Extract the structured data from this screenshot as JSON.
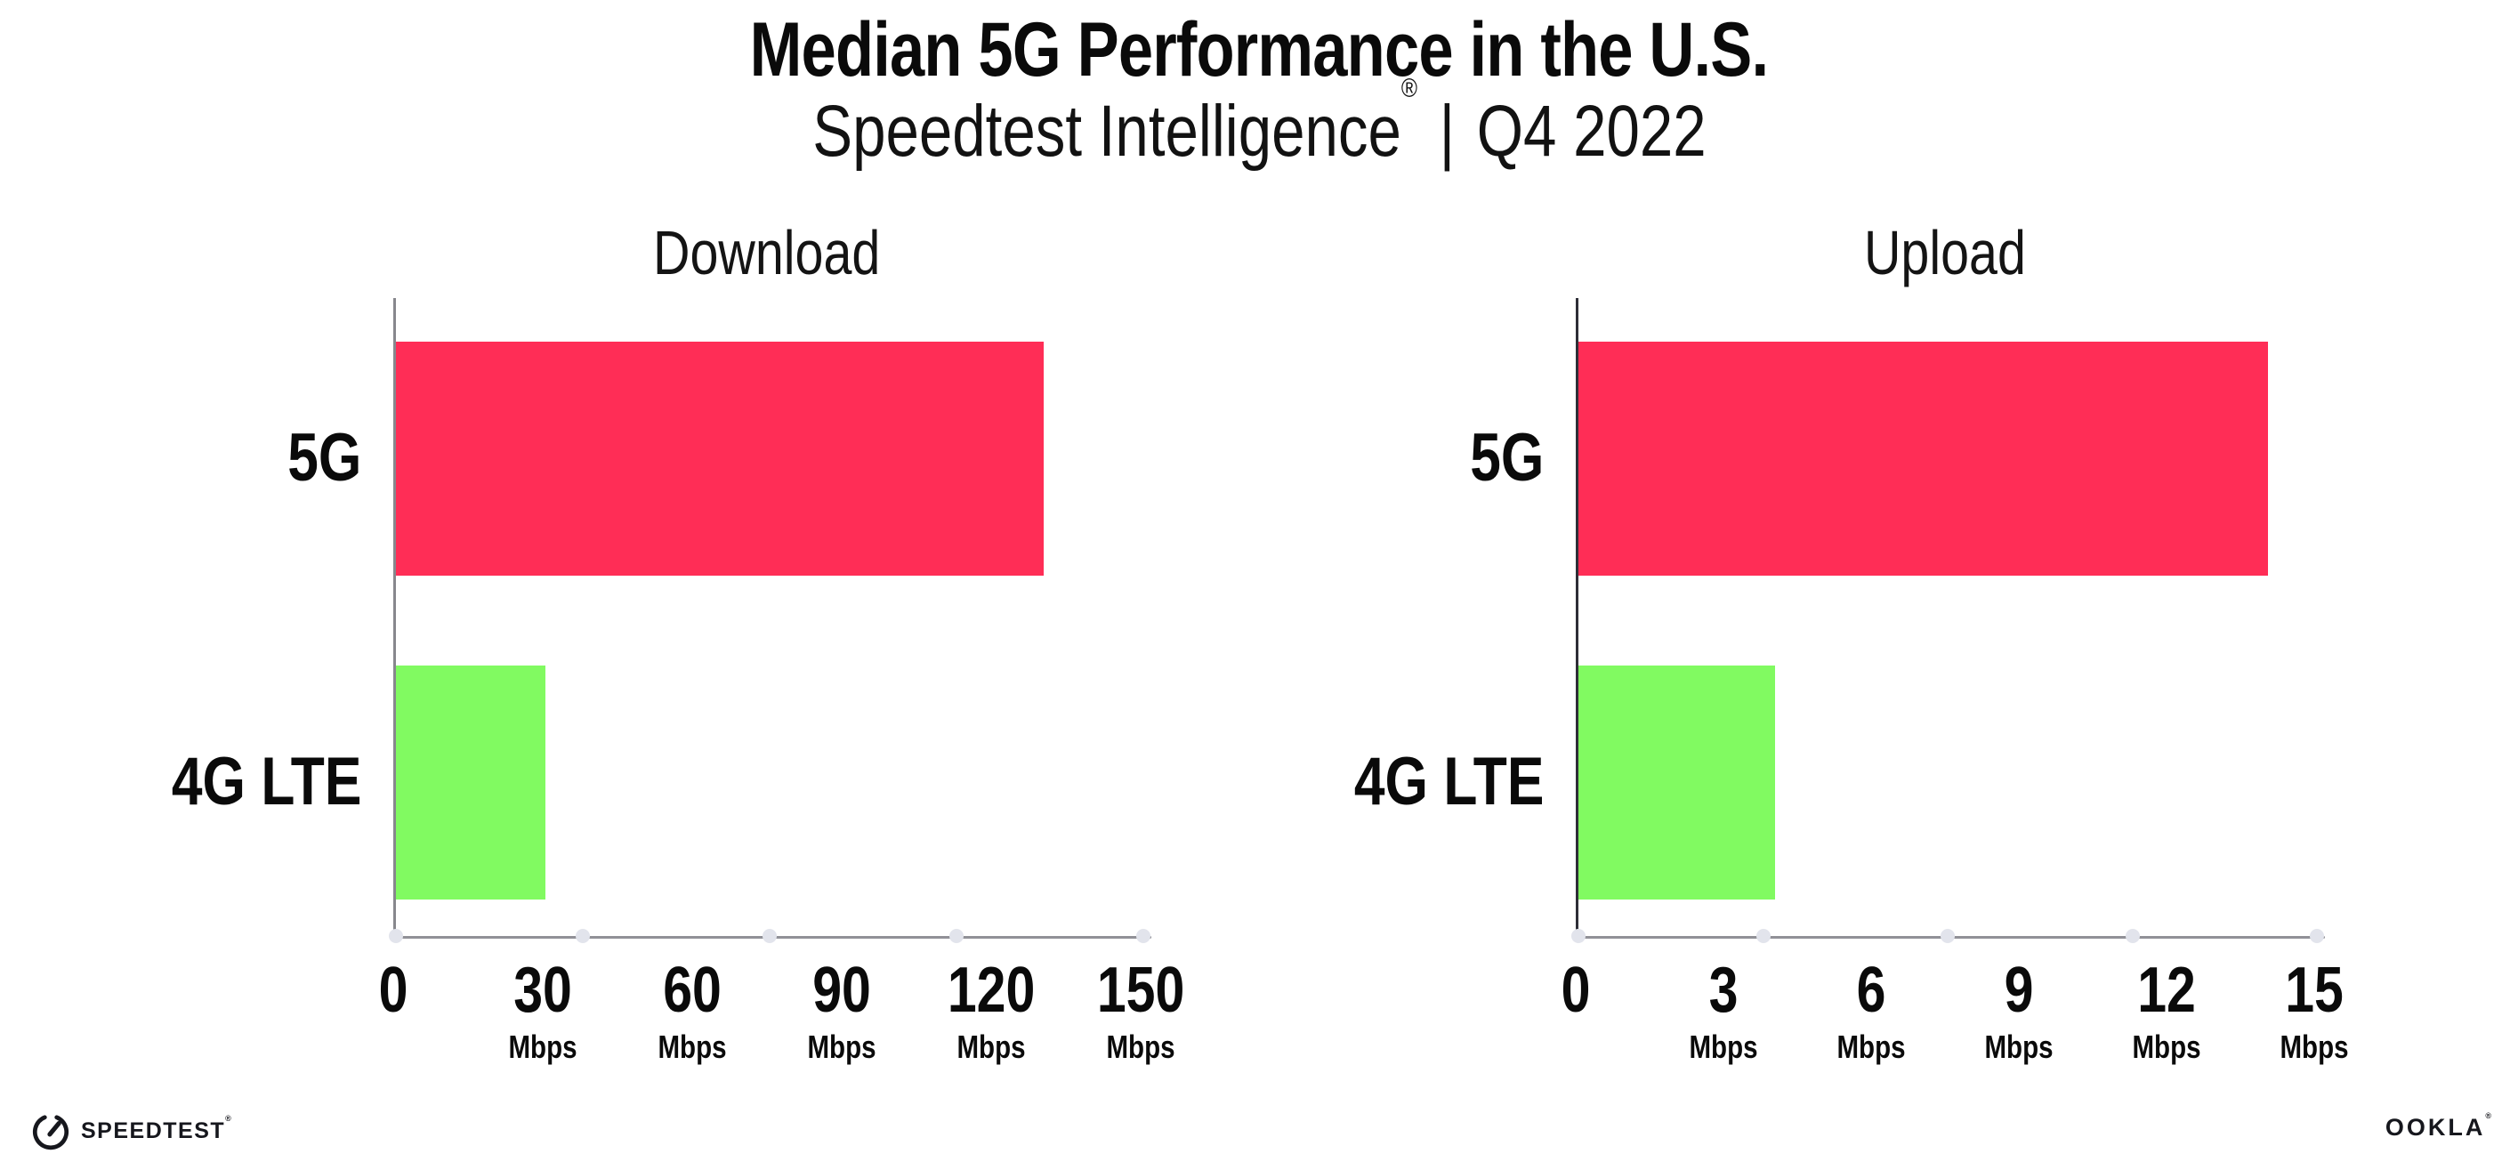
{
  "header": {
    "title": "Median 5G Performance in the U.S.",
    "subtitle": {
      "brand": "Speedtest Intelligence",
      "registered": "®",
      "separator": "|",
      "period": "Q4 2022"
    }
  },
  "chart_data": [
    {
      "type": "bar",
      "orientation": "horizontal",
      "title": "Download",
      "categories": [
        "5G",
        "4G LTE"
      ],
      "values": [
        130,
        30
      ],
      "unit": "Mbps",
      "xlim": [
        0,
        150
      ],
      "xticks": [
        0,
        30,
        60,
        90,
        120,
        150
      ],
      "tick_unit_label": "Mbps",
      "grid": "dotted-vertical",
      "legend": "none",
      "bar_colors": [
        "#ff2d56",
        "#81fa61"
      ]
    },
    {
      "type": "bar",
      "orientation": "horizontal",
      "title": "Upload",
      "categories": [
        "5G",
        "4G LTE"
      ],
      "values": [
        14,
        4
      ],
      "unit": "Mbps",
      "xlim": [
        0,
        15
      ],
      "xticks": [
        0,
        3,
        6,
        9,
        12,
        15
      ],
      "tick_unit_label": "Mbps",
      "grid": "dotted-vertical",
      "legend": "none",
      "bar_colors": [
        "#ff2d56",
        "#81fa61"
      ]
    }
  ],
  "colors": {
    "bar_5g": "#ff2d56",
    "bar_4g_lte": "#81fa61",
    "gridline_dots": "#dde0ec",
    "zero_line_dots": "#c9cbd8",
    "axis_x": "#919197",
    "axis_x_dots": "#e2e4ec",
    "axis_y_download": "#87878d",
    "axis_y_upload": "#2e2e37",
    "text": "#0a0a0a"
  },
  "footer": {
    "speedtest": {
      "icon": "speedtest-gauge-icon",
      "label": "SPEEDTEST",
      "registered": "®"
    },
    "ookla": {
      "label": "OOKLA",
      "registered": "®"
    }
  }
}
